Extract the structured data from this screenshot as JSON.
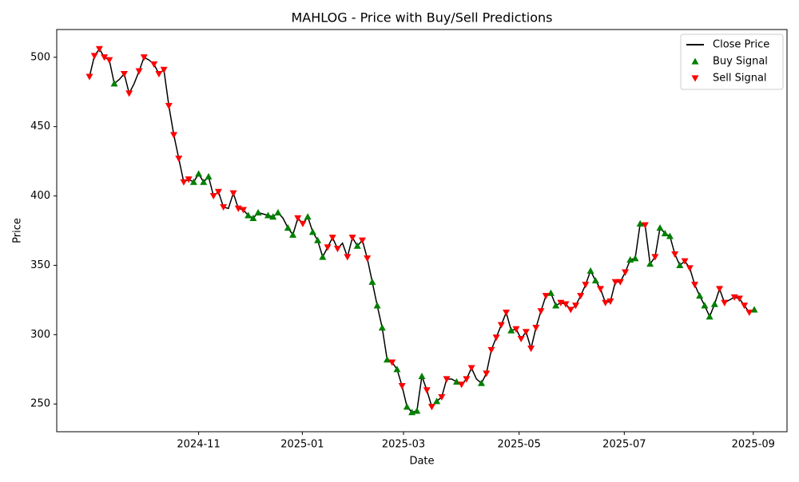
{
  "chart_data": {
    "type": "line",
    "title": "MAHLOG - Price with Buy/Sell Predictions",
    "x_label": "Date",
    "y_label": "Price",
    "categories": [
      null,
      null,
      null,
      null,
      null,
      null,
      null,
      null,
      null,
      null,
      null,
      null,
      null,
      null,
      null,
      null,
      null,
      null,
      null,
      null,
      null,
      null,
      null,
      null,
      null,
      null,
      null,
      null,
      null,
      null,
      null,
      null,
      null,
      null,
      null,
      null,
      null,
      null,
      null,
      null,
      null,
      null,
      null,
      null,
      null,
      null,
      null,
      null,
      null,
      null,
      null,
      null,
      null,
      null,
      null,
      null,
      null,
      null,
      null,
      null,
      null,
      null,
      null,
      null,
      null,
      null,
      null,
      null,
      null,
      null,
      null,
      null,
      null,
      null,
      null,
      null,
      null,
      null,
      null,
      null,
      null,
      null,
      null,
      null,
      null,
      null,
      null,
      null,
      null,
      null,
      null,
      null,
      null,
      null,
      null,
      null,
      null,
      null,
      null,
      null,
      null,
      null,
      null,
      null,
      null,
      null,
      null,
      null,
      null,
      null,
      null,
      null,
      null,
      null,
      null,
      null,
      null,
      null,
      null,
      null,
      null,
      null,
      null,
      null,
      null,
      null,
      null,
      null,
      null,
      null,
      null,
      null,
      null,
      null,
      null
    ],
    "xlim": [
      -6.6,
      140.6
    ],
    "xticks": [
      {
        "value": 22,
        "label": "2024-11"
      },
      {
        "value": 42.9,
        "label": "2025-01"
      },
      {
        "value": 63.3,
        "label": "2025-03"
      },
      {
        "value": 86.6,
        "label": "2025-05"
      },
      {
        "value": 107.8,
        "label": "2025-07"
      },
      {
        "value": 133.8,
        "label": "2025-09"
      }
    ],
    "ylim": [
      230,
      520
    ],
    "yticks": [
      250,
      300,
      350,
      400,
      450,
      500
    ],
    "legend": "upper right",
    "series": [
      {
        "name": "Close Price",
        "color": "#000000",
        "marker": "line",
        "values": [
          486,
          501,
          506,
          500,
          498,
          481,
          484,
          488,
          474,
          481,
          490,
          500,
          498,
          495,
          488,
          491,
          465,
          444,
          427,
          410,
          412,
          410,
          416,
          410,
          414,
          400,
          403,
          392,
          391,
          402,
          391,
          390,
          386,
          384,
          388,
          387,
          386,
          385,
          388,
          384,
          377,
          372,
          384,
          380,
          385,
          374,
          368,
          356,
          363,
          370,
          362,
          366,
          356,
          370,
          364,
          368,
          355,
          338,
          321,
          305,
          282,
          280,
          275,
          263,
          248,
          244,
          245,
          270,
          260,
          248,
          252,
          255,
          268,
          268,
          266,
          264,
          268,
          276,
          268,
          265,
          272,
          289,
          298,
          307,
          316,
          303,
          304,
          297,
          302,
          290,
          305,
          317,
          328,
          330,
          321,
          323,
          322,
          318,
          321,
          328,
          336,
          346,
          339,
          333,
          323,
          324,
          338,
          338,
          345,
          354,
          355,
          380,
          379,
          351,
          356,
          377,
          373,
          371,
          358,
          350,
          353,
          348,
          336,
          328,
          321,
          313,
          322,
          333,
          323,
          325,
          327,
          326,
          321,
          316,
          318
        ]
      },
      {
        "name": "Buy Signal",
        "color": "#008000",
        "marker": "up",
        "values": [
          null,
          null,
          null,
          null,
          null,
          481,
          null,
          null,
          null,
          null,
          null,
          null,
          null,
          null,
          null,
          null,
          null,
          null,
          null,
          null,
          null,
          410,
          416,
          410,
          414,
          null,
          null,
          null,
          null,
          null,
          null,
          null,
          386,
          384,
          388,
          null,
          386,
          385,
          388,
          null,
          377,
          372,
          null,
          null,
          385,
          374,
          368,
          356,
          null,
          null,
          null,
          null,
          null,
          null,
          364,
          null,
          null,
          338,
          321,
          305,
          282,
          null,
          275,
          null,
          248,
          244,
          245,
          270,
          null,
          null,
          252,
          null,
          null,
          null,
          266,
          null,
          null,
          null,
          null,
          265,
          null,
          null,
          null,
          null,
          null,
          303,
          null,
          null,
          null,
          null,
          null,
          null,
          null,
          330,
          321,
          null,
          null,
          null,
          null,
          null,
          null,
          346,
          339,
          null,
          null,
          null,
          null,
          null,
          null,
          354,
          355,
          380,
          null,
          351,
          null,
          377,
          373,
          371,
          null,
          350,
          null,
          null,
          null,
          328,
          321,
          313,
          322,
          null,
          null,
          null,
          null,
          null,
          null,
          null,
          318
        ]
      },
      {
        "name": "Sell Signal",
        "color": "#ff0000",
        "marker": "down",
        "values": [
          486,
          501,
          506,
          500,
          498,
          null,
          null,
          488,
          474,
          null,
          490,
          500,
          null,
          495,
          488,
          491,
          465,
          444,
          427,
          410,
          412,
          null,
          null,
          null,
          null,
          400,
          403,
          392,
          null,
          402,
          391,
          390,
          null,
          null,
          null,
          null,
          null,
          null,
          null,
          null,
          null,
          null,
          384,
          380,
          null,
          null,
          null,
          null,
          363,
          370,
          362,
          null,
          356,
          370,
          null,
          368,
          355,
          null,
          null,
          null,
          null,
          280,
          null,
          263,
          null,
          null,
          null,
          null,
          260,
          248,
          null,
          255,
          268,
          null,
          null,
          264,
          268,
          276,
          null,
          null,
          272,
          289,
          298,
          307,
          316,
          null,
          304,
          297,
          302,
          290,
          305,
          317,
          328,
          null,
          null,
          323,
          322,
          318,
          321,
          328,
          336,
          null,
          null,
          333,
          323,
          324,
          338,
          338,
          345,
          null,
          null,
          null,
          379,
          null,
          356,
          null,
          null,
          null,
          358,
          null,
          353,
          348,
          336,
          null,
          null,
          null,
          null,
          333,
          323,
          null,
          327,
          326,
          321,
          316,
          null
        ]
      }
    ]
  }
}
